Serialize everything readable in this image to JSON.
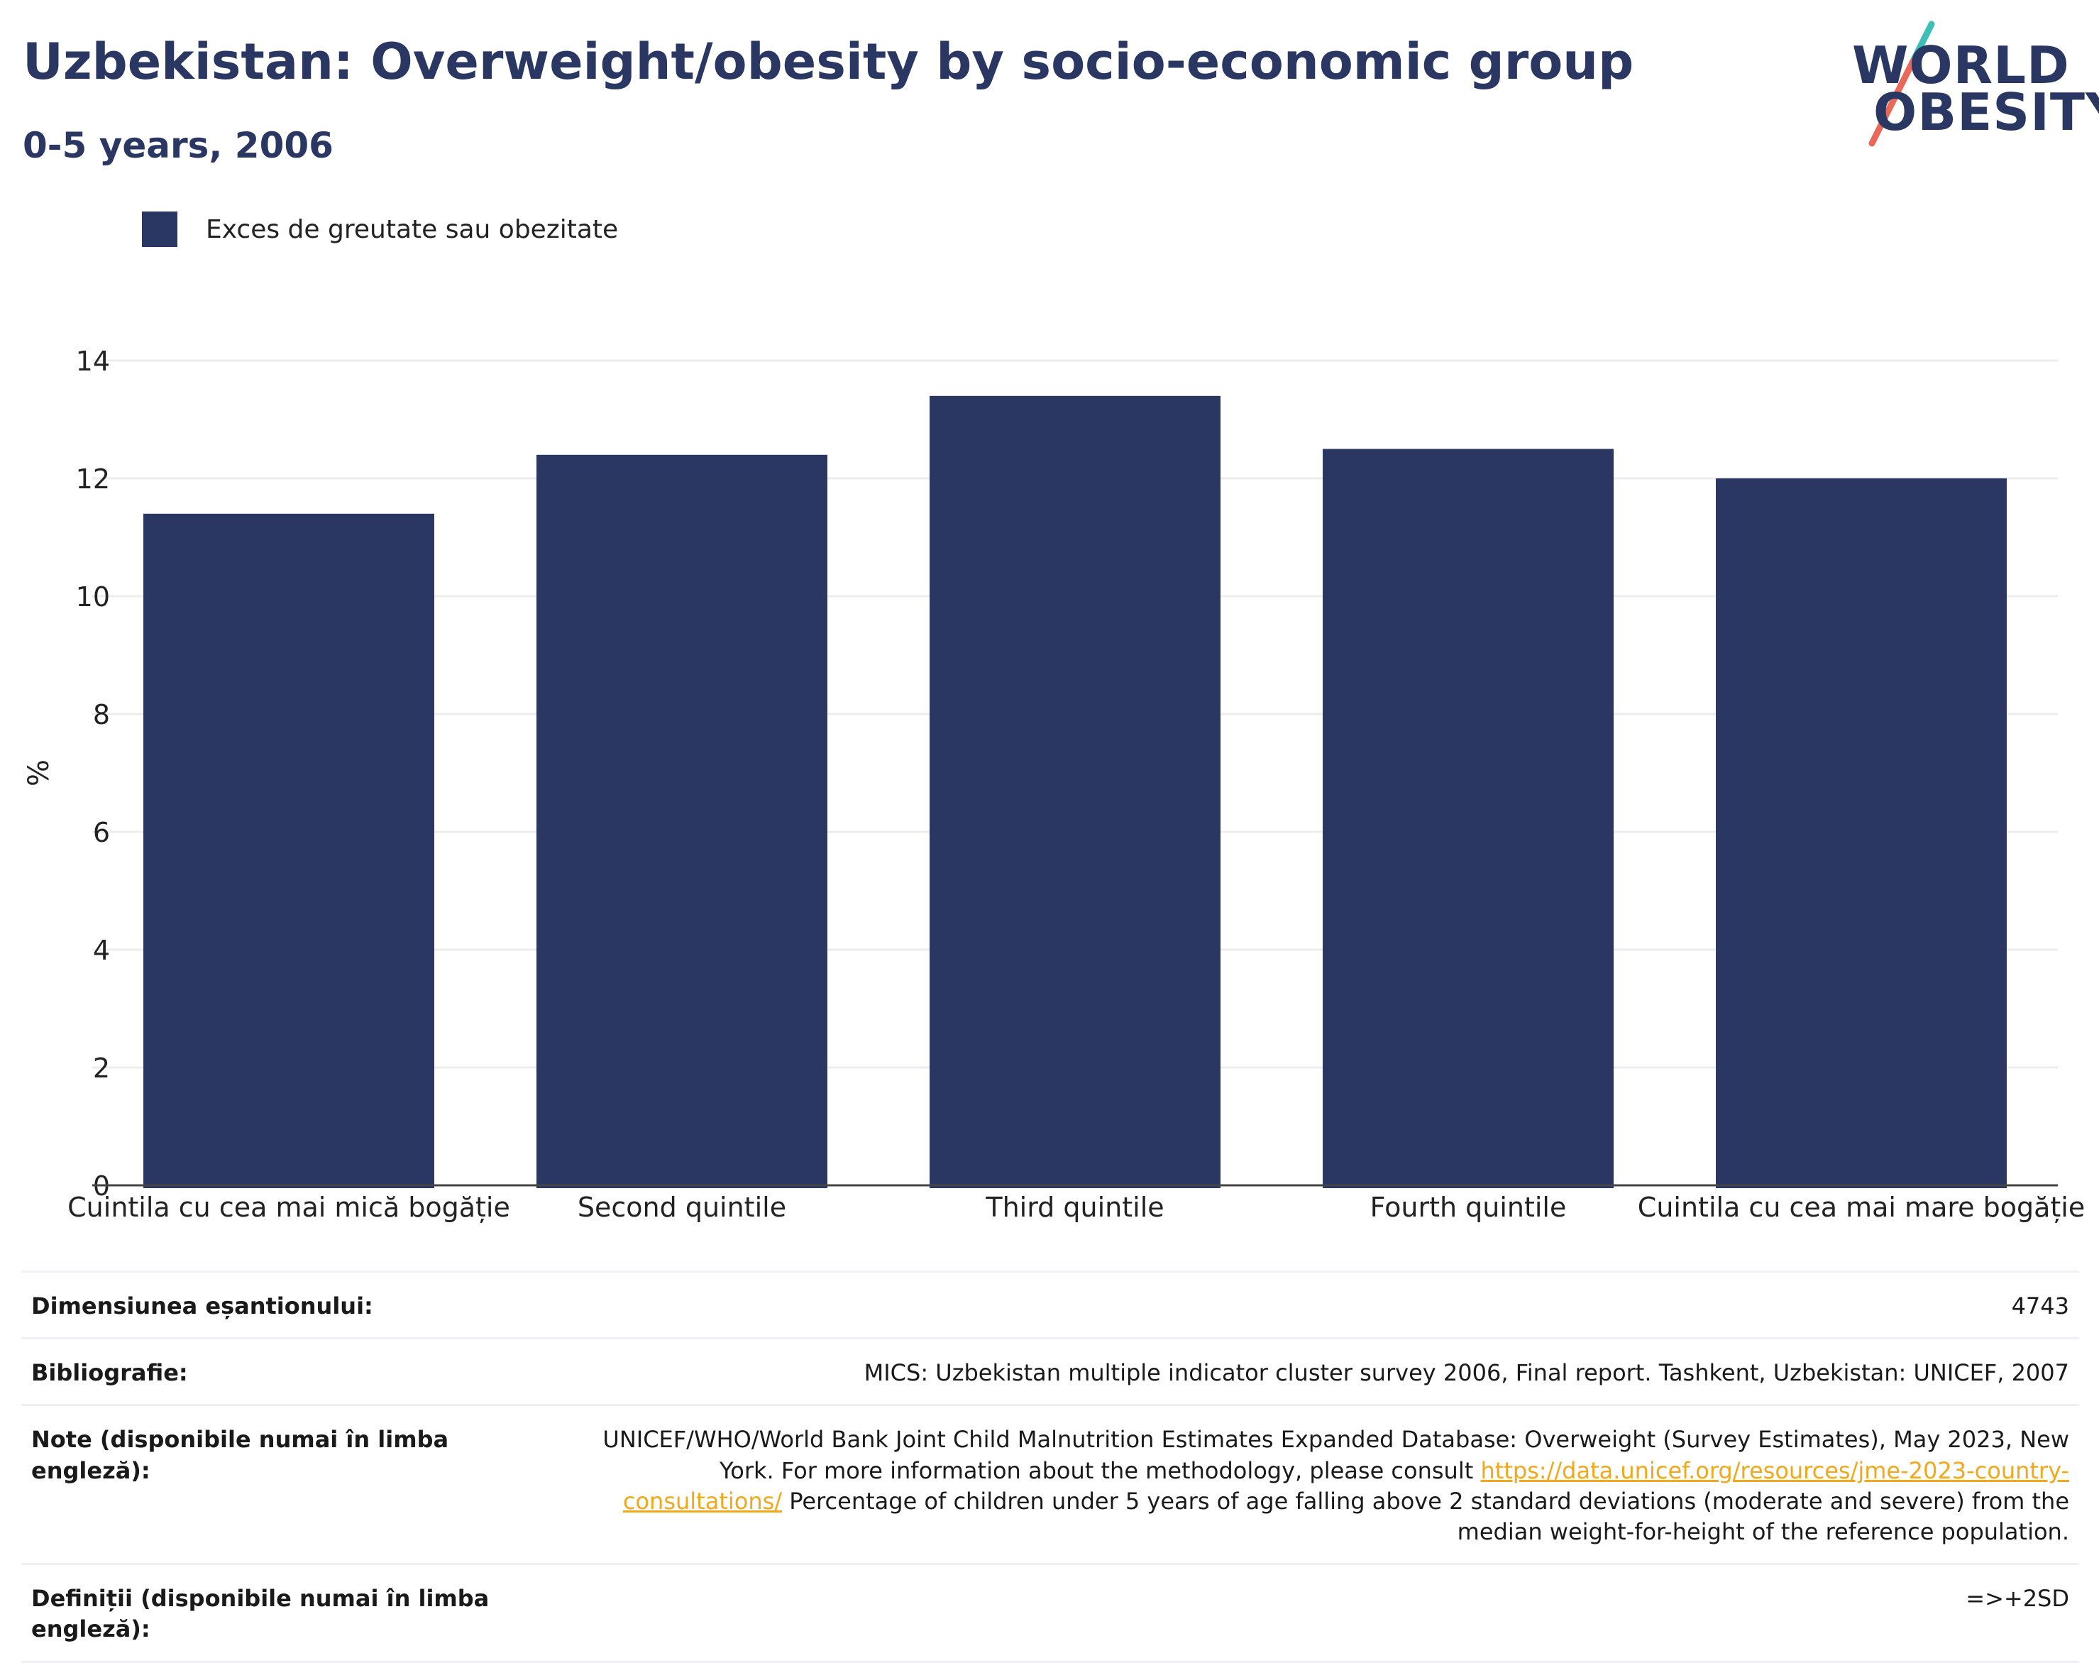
{
  "header": {
    "title": "Uzbekistan: Overweight/obesity by socio-economic group",
    "subtitle": "0-5 years, 2006"
  },
  "logo": {
    "line1": "WORLD",
    "line2": "OBESITY",
    "colors": {
      "text": "#2b3763",
      "slash_top": "#3dbfb8",
      "slash_bottom": "#e8685a"
    }
  },
  "legend": {
    "label": "Exces de greutate sau obezitate"
  },
  "chart_data": {
    "type": "bar",
    "title": "Uzbekistan: Overweight/obesity by socio-economic group",
    "subtitle": "0-5 years, 2006",
    "categories": [
      "Cuintila cu cea mai mică bogăție",
      "Second quintile",
      "Third quintile",
      "Fourth quintile",
      "Cuintila cu cea mai mare bogăție"
    ],
    "series": [
      {
        "name": "Exces de greutate sau obezitate",
        "values": [
          11.4,
          12.4,
          13.4,
          12.5,
          12.0
        ],
        "color": "#2b3763"
      }
    ],
    "xlabel": "",
    "ylabel": "%",
    "ylim": [
      0,
      14
    ],
    "yticks": [
      0,
      2,
      4,
      6,
      8,
      10,
      12,
      14
    ],
    "grid": true,
    "legend_position": "top-left"
  },
  "info": [
    {
      "key": "Dimensiunea eșantionului:",
      "value": "4743"
    },
    {
      "key": "Bibliografie:",
      "value": "MICS: Uzbekistan multiple indicator cluster survey 2006, Final report. Tashkent, Uzbekistan: UNICEF, 2007"
    },
    {
      "key": "Note (disponibile numai în limba engleză):",
      "value_before": "UNICEF/WHO/World Bank Joint Child Malnutrition Estimates Expanded Database: Overweight (Survey Estimates), May 2023, New York. For more information about the methodology, please consult ",
      "link": "https://data.unicef.org/resources/jme-2023-country-consultations/",
      "value_after": " Percentage of children under 5 years of age falling above 2 standard deviations (moderate and severe) from the median weight-for-height of the reference population."
    },
    {
      "key": "Definiții (disponibile numai în limba engleză):",
      "value": "=>+2SD"
    }
  ]
}
